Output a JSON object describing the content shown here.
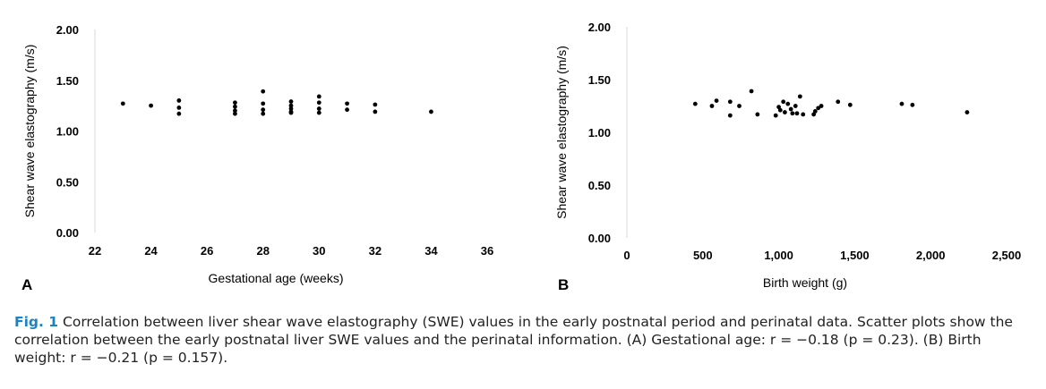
{
  "chart_data": [
    {
      "type": "scatter",
      "panel_label": "A",
      "xlabel": "Gestational age (weeks)",
      "ylabel": "Shear wave elastography (m/s)",
      "xlim": [
        22,
        36
      ],
      "ylim": [
        0,
        2
      ],
      "x_ticks": [
        "22",
        "24",
        "26",
        "28",
        "30",
        "32",
        "34",
        "36"
      ],
      "y_ticks": [
        "0.00",
        "0.50",
        "1.00",
        "1.50",
        "2.00"
      ],
      "grid": false,
      "points": [
        {
          "x": 23,
          "y": 1.27
        },
        {
          "x": 24,
          "y": 1.25
        },
        {
          "x": 25,
          "y": 1.3
        },
        {
          "x": 25,
          "y": 1.23
        },
        {
          "x": 25,
          "y": 1.17
        },
        {
          "x": 27,
          "y": 1.28
        },
        {
          "x": 27,
          "y": 1.24
        },
        {
          "x": 27,
          "y": 1.2
        },
        {
          "x": 27,
          "y": 1.17
        },
        {
          "x": 28,
          "y": 1.39
        },
        {
          "x": 28,
          "y": 1.27
        },
        {
          "x": 28,
          "y": 1.21
        },
        {
          "x": 28,
          "y": 1.17
        },
        {
          "x": 29,
          "y": 1.29
        },
        {
          "x": 29,
          "y": 1.25
        },
        {
          "x": 29,
          "y": 1.22
        },
        {
          "x": 29,
          "y": 1.19
        },
        {
          "x": 29,
          "y": 1.18
        },
        {
          "x": 30,
          "y": 1.34
        },
        {
          "x": 30,
          "y": 1.28
        },
        {
          "x": 30,
          "y": 1.22
        },
        {
          "x": 30,
          "y": 1.18
        },
        {
          "x": 31,
          "y": 1.27
        },
        {
          "x": 31,
          "y": 1.21
        },
        {
          "x": 32,
          "y": 1.26
        },
        {
          "x": 32,
          "y": 1.19
        },
        {
          "x": 34,
          "y": 1.19
        }
      ]
    },
    {
      "type": "scatter",
      "panel_label": "B",
      "xlabel": "Birth weight (g)",
      "ylabel": "Shear wave elastography (m/s)",
      "xlim": [
        0,
        2500
      ],
      "ylim": [
        0,
        2
      ],
      "x_ticks": [
        "0",
        "500",
        "1,000",
        "1,500",
        "2,000",
        "2,500"
      ],
      "y_ticks": [
        "0.00",
        "0.50",
        "1.00",
        "1.50",
        "2.00"
      ],
      "grid": false,
      "points": [
        {
          "x": 450,
          "y": 1.27
        },
        {
          "x": 560,
          "y": 1.25
        },
        {
          "x": 590,
          "y": 1.3
        },
        {
          "x": 680,
          "y": 1.29
        },
        {
          "x": 680,
          "y": 1.16
        },
        {
          "x": 740,
          "y": 1.25
        },
        {
          "x": 820,
          "y": 1.39
        },
        {
          "x": 860,
          "y": 1.17
        },
        {
          "x": 980,
          "y": 1.16
        },
        {
          "x": 1000,
          "y": 1.24
        },
        {
          "x": 1010,
          "y": 1.21
        },
        {
          "x": 1030,
          "y": 1.29
        },
        {
          "x": 1040,
          "y": 1.19
        },
        {
          "x": 1060,
          "y": 1.27
        },
        {
          "x": 1080,
          "y": 1.22
        },
        {
          "x": 1090,
          "y": 1.18
        },
        {
          "x": 1110,
          "y": 1.25
        },
        {
          "x": 1120,
          "y": 1.18
        },
        {
          "x": 1140,
          "y": 1.34
        },
        {
          "x": 1160,
          "y": 1.17
        },
        {
          "x": 1230,
          "y": 1.17
        },
        {
          "x": 1240,
          "y": 1.2
        },
        {
          "x": 1260,
          "y": 1.23
        },
        {
          "x": 1280,
          "y": 1.25
        },
        {
          "x": 1390,
          "y": 1.29
        },
        {
          "x": 1470,
          "y": 1.26
        },
        {
          "x": 1810,
          "y": 1.27
        },
        {
          "x": 1880,
          "y": 1.26
        },
        {
          "x": 2240,
          "y": 1.19
        }
      ]
    }
  ],
  "caption": {
    "label": "Fig. 1",
    "text": "Correlation between liver shear wave elastography (SWE) values in the early postnatal period and perinatal data. Scatter plots show the correlation between the early postnatal liver SWE values and the perinatal information. (A) Gestational age: r = −0.18 (p = 0.23). (B) Birth weight: r = −0.21 (p = 0.157)."
  }
}
